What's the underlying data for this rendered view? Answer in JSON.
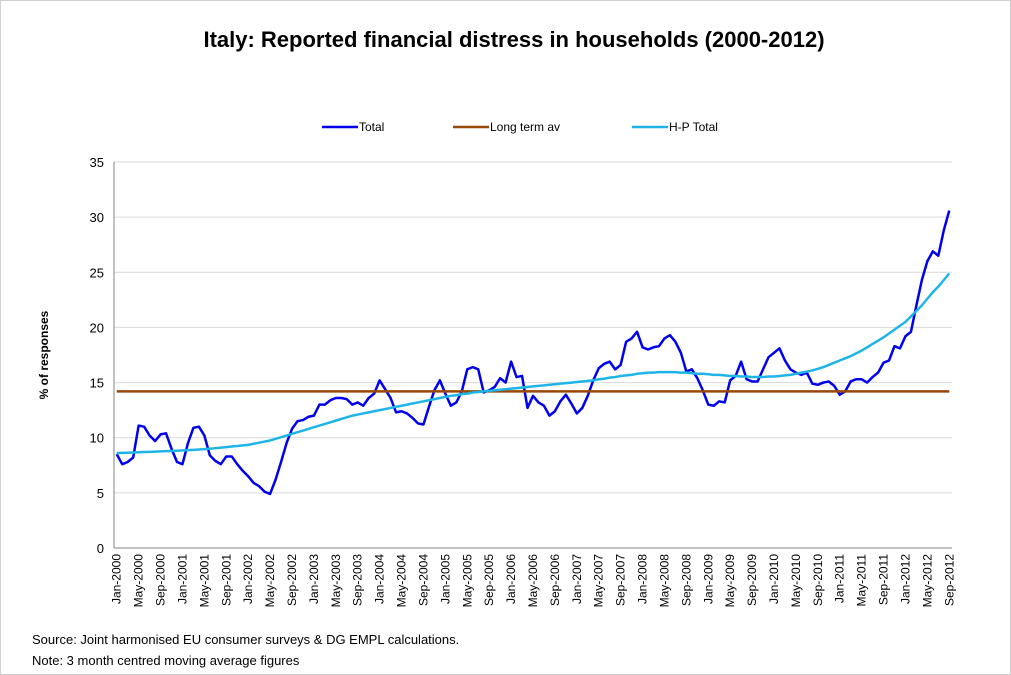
{
  "chart_data": {
    "type": "line",
    "title": "Italy: Reported financial distress in households (2000-2012)",
    "y_label": "% of responses",
    "notes": [
      "Source: Joint harmonised EU consumer surveys & DG EMPL calculations.",
      "Note: 3 month centred moving average figures"
    ],
    "ylim": [
      0,
      35
    ],
    "yticks": [
      0,
      5,
      10,
      15,
      20,
      25,
      30,
      35
    ],
    "grid": true,
    "legend": "top",
    "categories": [
      "Jan-2000",
      null,
      null,
      null,
      "May-2000",
      null,
      null,
      null,
      "Sep-2000",
      null,
      null,
      null,
      "Jan-2001",
      null,
      null,
      null,
      "May-2001",
      null,
      null,
      null,
      "Sep-2001",
      null,
      null,
      null,
      "Jan-2002",
      null,
      null,
      null,
      "May-2002",
      null,
      null,
      null,
      "Sep-2002",
      null,
      null,
      null,
      "Jan-2003",
      null,
      null,
      null,
      "May-2003",
      null,
      null,
      null,
      "Sep-2003",
      null,
      null,
      null,
      "Jan-2004",
      null,
      null,
      null,
      "May-2004",
      null,
      null,
      null,
      "Sep-2004",
      null,
      null,
      null,
      "Jan-2005",
      null,
      null,
      null,
      "May-2005",
      null,
      null,
      null,
      "Sep-2005",
      null,
      null,
      null,
      "Jan-2006",
      null,
      null,
      null,
      "May-2006",
      null,
      null,
      null,
      "Sep-2006",
      null,
      null,
      null,
      "Jan-2007",
      null,
      null,
      null,
      "May-2007",
      null,
      null,
      null,
      "Sep-2007",
      null,
      null,
      null,
      "Jan-2008",
      null,
      null,
      null,
      "May-2008",
      null,
      null,
      null,
      "Sep-2008",
      null,
      null,
      null,
      "Jan-2009",
      null,
      null,
      null,
      "May-2009",
      null,
      null,
      null,
      "Sep-2009",
      null,
      null,
      null,
      "Jan-2010",
      null,
      null,
      null,
      "May-2010",
      null,
      null,
      null,
      "Sep-2010",
      null,
      null,
      null,
      "Jan-2011",
      null,
      null,
      null,
      "May-2011",
      null,
      null,
      null,
      "Sep-2011",
      null,
      null,
      null,
      "Jan-2012",
      null,
      null,
      null,
      "May-2012",
      null,
      null,
      null,
      "Sep-2012"
    ],
    "series": [
      {
        "name": "Total",
        "color": "#0000ee",
        "values": [
          8.5,
          7.6,
          7.8,
          8.2,
          11.1,
          11.0,
          10.2,
          9.7,
          10.3,
          10.4,
          9.0,
          7.8,
          7.6,
          9.5,
          10.9,
          11.0,
          10.2,
          8.4,
          7.9,
          7.6,
          8.3,
          8.3,
          7.6,
          7.0,
          6.5,
          5.9,
          5.6,
          5.1,
          4.9,
          6.2,
          7.8,
          9.5,
          10.8,
          11.5,
          11.6,
          11.9,
          12.0,
          13.0,
          13.0,
          13.4,
          13.6,
          13.6,
          13.5,
          13.0,
          13.2,
          12.9,
          13.6,
          14.0,
          15.2,
          14.4,
          13.6,
          12.3,
          12.4,
          12.2,
          11.8,
          11.3,
          11.2,
          12.8,
          14.3,
          15.2,
          14.0,
          12.9,
          13.2,
          14.2,
          16.2,
          16.4,
          16.2,
          14.1,
          14.3,
          14.6,
          15.4,
          15.0,
          16.9,
          15.5,
          15.6,
          12.7,
          13.8,
          13.2,
          12.9,
          12.0,
          12.4,
          13.3,
          13.9,
          13.1,
          12.2,
          12.7,
          13.8,
          15.2,
          16.3,
          16.7,
          16.9,
          16.2,
          16.6,
          18.7,
          19.0,
          19.6,
          18.2,
          18.0,
          18.2,
          18.3,
          19.0,
          19.3,
          18.7,
          17.7,
          16.0,
          16.2,
          15.4,
          14.3,
          13.0,
          12.9,
          13.3,
          13.2,
          15.2,
          15.6,
          16.9,
          15.3,
          15.1,
          15.1,
          16.2,
          17.3,
          17.7,
          18.1,
          17.0,
          16.2,
          15.9,
          15.7,
          15.9,
          14.9,
          14.8,
          15.0,
          15.1,
          14.7,
          13.9,
          14.2,
          15.1,
          15.3,
          15.3,
          15.0,
          15.5,
          15.9,
          16.8,
          17.0,
          18.3,
          18.1,
          19.2,
          19.6,
          22.0,
          24.3,
          26.0,
          26.9,
          26.5,
          28.8,
          30.6
        ]
      },
      {
        "name": "Long term av",
        "color": "#984807",
        "value": 14.2
      },
      {
        "name": "H-P Total",
        "color": "#1fb4e8",
        "values": [
          8.6,
          8.62,
          8.64,
          8.66,
          8.68,
          8.7,
          8.72,
          8.74,
          8.76,
          8.78,
          8.8,
          8.82,
          8.85,
          8.88,
          8.9,
          8.93,
          8.96,
          9.0,
          9.05,
          9.1,
          9.15,
          9.2,
          9.25,
          9.3,
          9.35,
          9.45,
          9.55,
          9.65,
          9.75,
          9.9,
          10.05,
          10.2,
          10.35,
          10.5,
          10.65,
          10.8,
          10.95,
          11.1,
          11.25,
          11.4,
          11.55,
          11.7,
          11.85,
          12.0,
          12.1,
          12.2,
          12.3,
          12.4,
          12.5,
          12.6,
          12.7,
          12.8,
          12.9,
          13.0,
          13.1,
          13.2,
          13.3,
          13.4,
          13.5,
          13.6,
          13.7,
          13.8,
          13.85,
          13.95,
          14.0,
          14.1,
          14.15,
          14.2,
          14.25,
          14.3,
          14.35,
          14.4,
          14.45,
          14.5,
          14.55,
          14.6,
          14.65,
          14.7,
          14.75,
          14.8,
          14.85,
          14.9,
          14.95,
          15.0,
          15.05,
          15.1,
          15.15,
          15.2,
          15.3,
          15.35,
          15.45,
          15.5,
          15.6,
          15.65,
          15.7,
          15.8,
          15.85,
          15.9,
          15.9,
          15.95,
          15.95,
          15.95,
          15.95,
          15.9,
          15.9,
          15.85,
          15.8,
          15.8,
          15.75,
          15.7,
          15.7,
          15.65,
          15.6,
          15.6,
          15.55,
          15.55,
          15.5,
          15.5,
          15.5,
          15.55,
          15.55,
          15.6,
          15.65,
          15.7,
          15.8,
          15.9,
          16.0,
          16.1,
          16.25,
          16.4,
          16.6,
          16.8,
          17.0,
          17.2,
          17.4,
          17.65,
          17.9,
          18.2,
          18.5,
          18.8,
          19.1,
          19.45,
          19.8,
          20.15,
          20.5,
          21.0,
          21.5,
          22.0,
          22.6,
          23.2,
          23.7,
          24.3,
          24.9
        ]
      }
    ]
  }
}
